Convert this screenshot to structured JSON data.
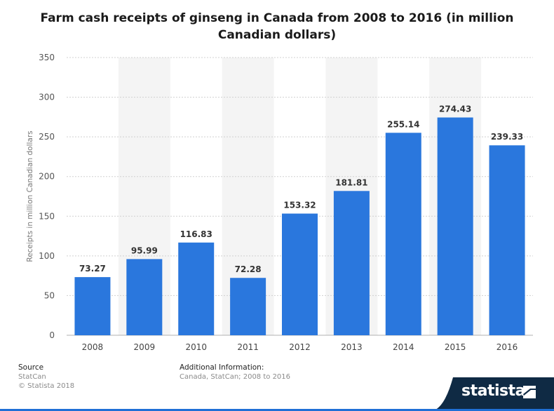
{
  "title": "Farm cash receipts of ginseng in Canada from 2008 to 2016 (in million Canadian dollars)",
  "colors": {
    "bar": "#2a77dd",
    "grid": "#d0d0d0",
    "band": "#f4f4f4",
    "logo_bg": "#0f2a44"
  },
  "chart_data": {
    "type": "bar",
    "categories": [
      "2008",
      "2009",
      "2010",
      "2011",
      "2012",
      "2013",
      "2014",
      "2015",
      "2016"
    ],
    "values": [
      73.27,
      95.99,
      116.83,
      72.28,
      153.32,
      181.81,
      255.14,
      274.43,
      239.33
    ],
    "value_labels": [
      "73.27",
      "95.99",
      "116.83",
      "72.28",
      "153.32",
      "181.81",
      "255.14",
      "274.43",
      "239.33"
    ],
    "title": "Farm cash receipts of ginseng in Canada from 2008 to 2016 (in million Canadian dollars)",
    "xlabel": "",
    "ylabel": "Receipts in million Canadian dollars",
    "ylim": [
      0,
      350
    ],
    "yticks": [
      0,
      50,
      100,
      150,
      200,
      250,
      300,
      350
    ],
    "grid": true
  },
  "footer": {
    "source_heading": "Source",
    "source_lines": [
      "StatCan",
      "© Statista 2018"
    ],
    "info_heading": "Additional Information:",
    "info_text": "Canada, StatCan; 2008 to 2016"
  },
  "logo": {
    "text": "statista",
    "icon": "statista-logo-icon"
  }
}
